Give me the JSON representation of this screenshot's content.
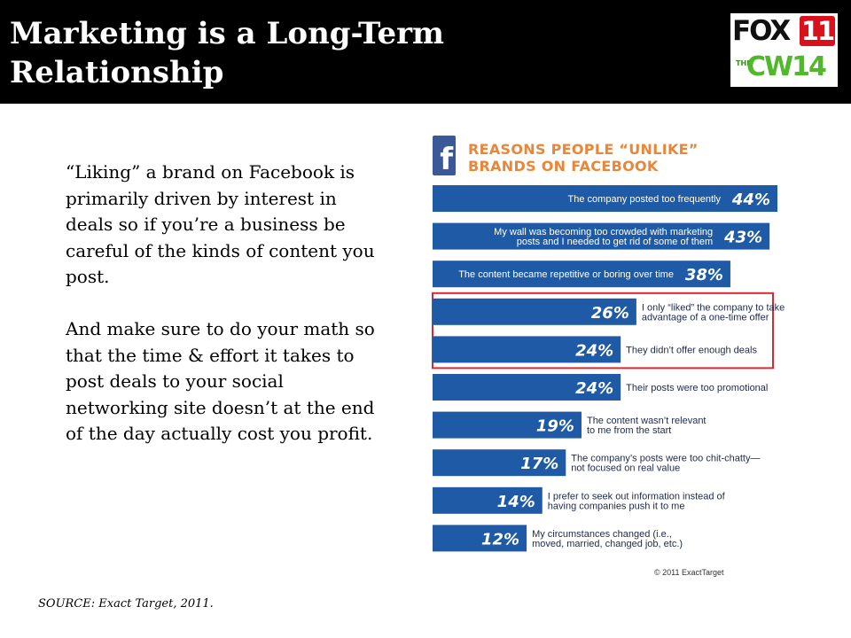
{
  "slide": {
    "title_line1": "Marketing is a Long-Term",
    "title_line2": "Relationship",
    "paragraph1": "“Liking” a brand on Facebook is primarily driven by interest in deals so if you’re a business be careful of the kinds of content you post.",
    "paragraph2": "And make sure to do your math so that the time & effort it takes to post deals to your social networking site doesn’t at the end of the day actually cost you profit.",
    "source": "SOURCE: Exact Target, 2011."
  },
  "logo": {
    "fox": "FOX",
    "fox_number": "11",
    "the": "THE",
    "cw": "CW14"
  },
  "colors": {
    "bar": "#1f5aa6",
    "highlight": "#d9282f",
    "title_orange": "#e8863a"
  },
  "chart_data": {
    "type": "bar",
    "orientation": "horizontal",
    "title_line1": "REASONS PEOPLE “UNLIKE”",
    "title_line2": "BRANDS ON FACEBOOK",
    "icon": "facebook-icon",
    "copyright": "© 2011 ExactTarget",
    "categories": [
      [
        "The company posted too frequently"
      ],
      [
        "My wall was becoming too crowded with marketing",
        "posts and I needed to get rid of some of them"
      ],
      [
        "The content became repetitive or boring over time"
      ],
      [
        "I only “liked” the company to take",
        "advantage of a one-time offer"
      ],
      [
        "They didn’t offer enough deals"
      ],
      [
        "Their posts were too promotional"
      ],
      [
        "The content wasn’t relevant",
        "to me from the start"
      ],
      [
        "The company’s posts were too chit-chatty—",
        "not focused on real value"
      ],
      [
        "I prefer to seek out information instead of",
        "having companies push it to me"
      ],
      [
        "My circumstances changed (i.e.,",
        "moved, married, changed job, etc.)"
      ]
    ],
    "values": [
      44,
      43,
      38,
      26,
      24,
      24,
      19,
      17,
      14,
      12
    ],
    "value_labels": [
      "44%",
      "43%",
      "38%",
      "26%",
      "24%",
      "24%",
      "19%",
      "17%",
      "14%",
      "12%"
    ],
    "highlighted": [
      3,
      4
    ],
    "xlim": [
      0,
      44
    ]
  }
}
